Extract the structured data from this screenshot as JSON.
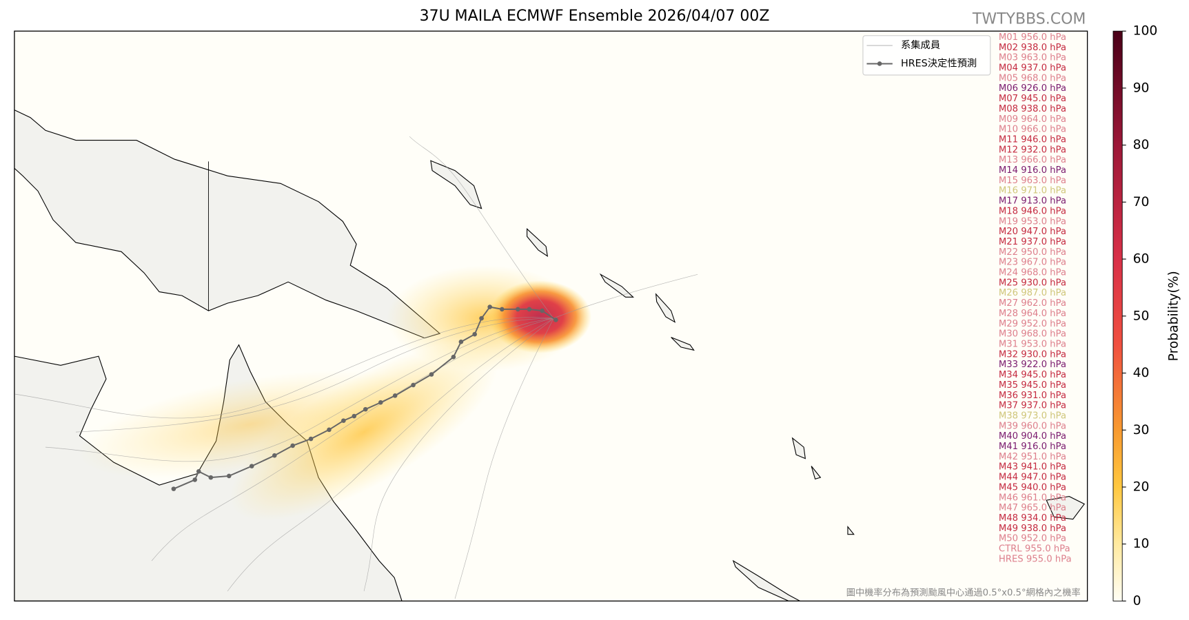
{
  "header": {
    "title": "37U MAILA ECMWF Ensemble 2026/04/07 00Z",
    "watermark": "TWTYBBS.COM"
  },
  "legend": {
    "members": "系集成員",
    "hres": "HRES決定性預測"
  },
  "members": [
    {
      "label": "M01 956.0 hPa",
      "color": "#dd7f8c"
    },
    {
      "label": "M02 938.0 hPa",
      "color": "#c42a40"
    },
    {
      "label": "M03 963.0 hPa",
      "color": "#dd7f8c"
    },
    {
      "label": "M04 937.0 hPa",
      "color": "#c42a40"
    },
    {
      "label": "M05 968.0 hPa",
      "color": "#dd7f8c"
    },
    {
      "label": "M06 926.0 hPa",
      "color": "#7a1a6e"
    },
    {
      "label": "M07 945.0 hPa",
      "color": "#c42a40"
    },
    {
      "label": "M08 938.0 hPa",
      "color": "#c42a40"
    },
    {
      "label": "M09 964.0 hPa",
      "color": "#dd7f8c"
    },
    {
      "label": "M10 966.0 hPa",
      "color": "#dd7f8c"
    },
    {
      "label": "M11 946.0 hPa",
      "color": "#c42a40"
    },
    {
      "label": "M12 932.0 hPa",
      "color": "#c42a40"
    },
    {
      "label": "M13 966.0 hPa",
      "color": "#dd7f8c"
    },
    {
      "label": "M14 916.0 hPa",
      "color": "#7a1a6e"
    },
    {
      "label": "M15 963.0 hPa",
      "color": "#dd7f8c"
    },
    {
      "label": "M16 971.0 hPa",
      "color": "#cfc67a"
    },
    {
      "label": "M17 913.0 hPa",
      "color": "#7a1a6e"
    },
    {
      "label": "M18 946.0 hPa",
      "color": "#c42a40"
    },
    {
      "label": "M19 953.0 hPa",
      "color": "#dd7f8c"
    },
    {
      "label": "M20 947.0 hPa",
      "color": "#c42a40"
    },
    {
      "label": "M21 937.0 hPa",
      "color": "#c42a40"
    },
    {
      "label": "M22 950.0 hPa",
      "color": "#dd7f8c"
    },
    {
      "label": "M23 967.0 hPa",
      "color": "#dd7f8c"
    },
    {
      "label": "M24 968.0 hPa",
      "color": "#dd7f8c"
    },
    {
      "label": "M25 930.0 hPa",
      "color": "#c42a40"
    },
    {
      "label": "M26 987.0 hPa",
      "color": "#cfc67a"
    },
    {
      "label": "M27 962.0 hPa",
      "color": "#dd7f8c"
    },
    {
      "label": "M28 964.0 hPa",
      "color": "#dd7f8c"
    },
    {
      "label": "M29 952.0 hPa",
      "color": "#dd7f8c"
    },
    {
      "label": "M30 968.0 hPa",
      "color": "#dd7f8c"
    },
    {
      "label": "M31 953.0 hPa",
      "color": "#dd7f8c"
    },
    {
      "label": "M32 930.0 hPa",
      "color": "#c42a40"
    },
    {
      "label": "M33 922.0 hPa",
      "color": "#7a1a6e"
    },
    {
      "label": "M34 945.0 hPa",
      "color": "#c42a40"
    },
    {
      "label": "M35 945.0 hPa",
      "color": "#c42a40"
    },
    {
      "label": "M36 931.0 hPa",
      "color": "#c42a40"
    },
    {
      "label": "M37 937.0 hPa",
      "color": "#c42a40"
    },
    {
      "label": "M38 973.0 hPa",
      "color": "#cfc67a"
    },
    {
      "label": "M39 960.0 hPa",
      "color": "#dd7f8c"
    },
    {
      "label": "M40 904.0 hPa",
      "color": "#7a1a6e"
    },
    {
      "label": "M41 916.0 hPa",
      "color": "#7a1a6e"
    },
    {
      "label": "M42 951.0 hPa",
      "color": "#dd7f8c"
    },
    {
      "label": "M43 941.0 hPa",
      "color": "#c42a40"
    },
    {
      "label": "M44 947.0 hPa",
      "color": "#c42a40"
    },
    {
      "label": "M45 940.0 hPa",
      "color": "#c42a40"
    },
    {
      "label": "M46 961.0 hPa",
      "color": "#dd7f8c"
    },
    {
      "label": "M47 965.0 hPa",
      "color": "#dd7f8c"
    },
    {
      "label": "M48 934.0 hPa",
      "color": "#c42a40"
    },
    {
      "label": "M49 938.0 hPa",
      "color": "#c42a40"
    },
    {
      "label": "M50 952.0 hPa",
      "color": "#dd7f8c"
    },
    {
      "label": "CTRL 955.0 hPa",
      "color": "#dd7f8c"
    },
    {
      "label": "HRES 955.0 hPa",
      "color": "#dd7f8c"
    }
  ],
  "colorbar": {
    "label": "Probability(%)",
    "ylim": [
      0,
      100
    ],
    "yticks": [
      0,
      10,
      20,
      30,
      40,
      50,
      60,
      70,
      80,
      90,
      100
    ]
  },
  "footnote": "圖中機率分布為預測颱風中心通過0.5°x0.5°網格內之機率"
}
